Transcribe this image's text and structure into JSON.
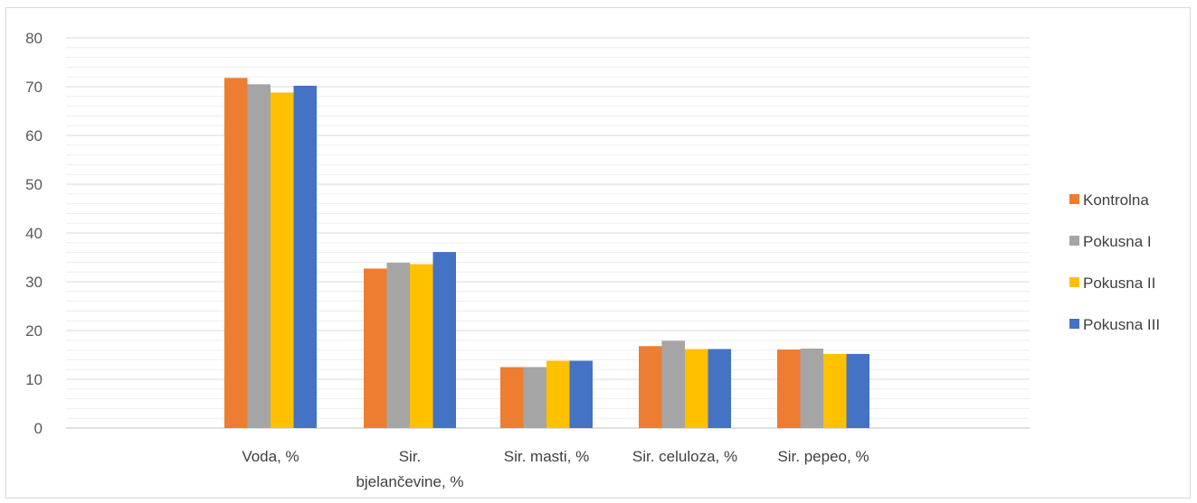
{
  "chart_data": {
    "type": "bar",
    "title": "",
    "xlabel": "",
    "ylabel": "",
    "ylim": [
      0,
      80
    ],
    "yticks": [
      0,
      10,
      20,
      30,
      40,
      50,
      60,
      70,
      80
    ],
    "grid": true,
    "legend_position": "right",
    "categories": [
      [
        "Voda, %"
      ],
      [
        "Sir.",
        "bjelančevine, %"
      ],
      [
        "Sir. masti, %"
      ],
      [
        "Sir. celuloza, %"
      ],
      [
        "Sir. pepeo, %"
      ]
    ],
    "series": [
      {
        "name": "Kontrolna",
        "color": "#ED7D31",
        "values": [
          71.8,
          32.7,
          12.5,
          16.8,
          16.1
        ]
      },
      {
        "name": "Pokusna I",
        "color": "#A5A5A5",
        "values": [
          70.5,
          33.9,
          12.5,
          17.9,
          16.3
        ]
      },
      {
        "name": "Pokusna II",
        "color": "#FFC000",
        "values": [
          68.8,
          33.6,
          13.8,
          16.2,
          15.2
        ]
      },
      {
        "name": "Pokusna III",
        "color": "#4472C4",
        "values": [
          70.2,
          36.1,
          13.8,
          16.2,
          15.2
        ]
      }
    ]
  }
}
